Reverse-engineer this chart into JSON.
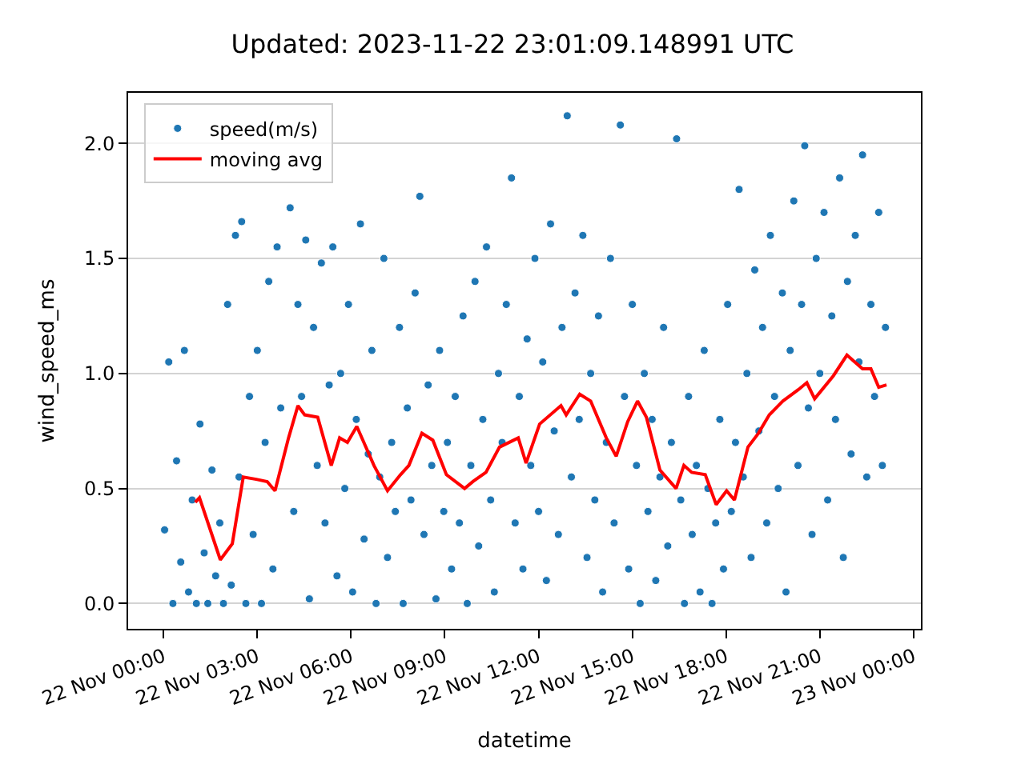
{
  "chart_data": {
    "type": "scatter",
    "title": "Updated: 2023-11-22 23:01:09.148991 UTC",
    "xlabel": "datetime",
    "ylabel": "wind_speed_ms",
    "xlim": [
      "2023-11-21T22:52",
      "2023-11-23T00:14"
    ],
    "xticks": [
      {
        "value": "2023-11-22T00:00",
        "label": "22 Nov 00:00"
      },
      {
        "value": "2023-11-22T03:00",
        "label": "22 Nov 03:00"
      },
      {
        "value": "2023-11-22T06:00",
        "label": "22 Nov 06:00"
      },
      {
        "value": "2023-11-22T09:00",
        "label": "22 Nov 09:00"
      },
      {
        "value": "2023-11-22T12:00",
        "label": "22 Nov 12:00"
      },
      {
        "value": "2023-11-22T15:00",
        "label": "22 Nov 15:00"
      },
      {
        "value": "2023-11-22T18:00",
        "label": "22 Nov 18:00"
      },
      {
        "value": "2023-11-22T21:00",
        "label": "22 Nov 21:00"
      },
      {
        "value": "2023-11-23T00:00",
        "label": "23 Nov 00:00"
      }
    ],
    "ylim": [
      -0.11,
      2.22
    ],
    "yticks": [
      {
        "value": 0,
        "label": "0.0"
      },
      {
        "value": 0.5,
        "label": "0.5"
      },
      {
        "value": 1,
        "label": "1.0"
      },
      {
        "value": 1.5,
        "label": "1.5"
      },
      {
        "value": 2,
        "label": "2.0"
      }
    ],
    "grid": "y",
    "legend": "top left",
    "series": [
      {
        "name": "speed(m/s)",
        "marker": "circle",
        "color": "#1f77b4",
        "x": [
          "2023-11-22T00:02",
          "2023-11-22T00:10",
          "2023-11-22T00:18",
          "2023-11-22T00:25",
          "2023-11-22T00:33",
          "2023-11-22T00:40",
          "2023-11-22T00:48",
          "2023-11-22T00:55",
          "2023-11-22T01:03",
          "2023-11-22T01:10",
          "2023-11-22T01:18",
          "2023-11-22T01:25",
          "2023-11-22T01:33",
          "2023-11-22T01:40",
          "2023-11-22T01:48",
          "2023-11-22T01:55",
          "2023-11-22T02:03",
          "2023-11-22T02:10",
          "2023-11-22T02:18",
          "2023-11-22T02:25",
          "2023-11-22T02:30",
          "2023-11-22T02:38",
          "2023-11-22T02:45",
          "2023-11-22T02:52",
          "2023-11-22T03:00",
          "2023-11-22T03:08",
          "2023-11-22T03:15",
          "2023-11-22T03:22",
          "2023-11-22T03:30",
          "2023-11-22T03:38",
          "2023-11-22T03:45",
          "2023-11-22T04:03",
          "2023-11-22T04:10",
          "2023-11-22T04:18",
          "2023-11-22T04:25",
          "2023-11-22T04:33",
          "2023-11-22T04:40",
          "2023-11-22T04:48",
          "2023-11-22T04:55",
          "2023-11-22T05:03",
          "2023-11-22T05:10",
          "2023-11-22T05:18",
          "2023-11-22T05:25",
          "2023-11-22T05:33",
          "2023-11-22T05:40",
          "2023-11-22T05:48",
          "2023-11-22T05:55",
          "2023-11-22T06:03",
          "2023-11-22T06:10",
          "2023-11-22T06:18",
          "2023-11-22T06:25",
          "2023-11-22T06:33",
          "2023-11-22T06:40",
          "2023-11-22T06:48",
          "2023-11-22T06:55",
          "2023-11-22T07:03",
          "2023-11-22T07:10",
          "2023-11-22T07:18",
          "2023-11-22T07:25",
          "2023-11-22T07:33",
          "2023-11-22T07:40",
          "2023-11-22T07:48",
          "2023-11-22T07:55",
          "2023-11-22T08:03",
          "2023-11-22T08:12",
          "2023-11-22T08:20",
          "2023-11-22T08:28",
          "2023-11-22T08:35",
          "2023-11-22T08:43",
          "2023-11-22T08:50",
          "2023-11-22T08:58",
          "2023-11-22T09:05",
          "2023-11-22T09:13",
          "2023-11-22T09:20",
          "2023-11-22T09:28",
          "2023-11-22T09:35",
          "2023-11-22T09:43",
          "2023-11-22T09:50",
          "2023-11-22T09:58",
          "2023-11-22T10:05",
          "2023-11-22T10:13",
          "2023-11-22T10:20",
          "2023-11-22T10:28",
          "2023-11-22T10:35",
          "2023-11-22T10:43",
          "2023-11-22T10:50",
          "2023-11-22T10:58",
          "2023-11-22T11:08",
          "2023-11-22T11:15",
          "2023-11-22T11:23",
          "2023-11-22T11:30",
          "2023-11-22T11:38",
          "2023-11-22T11:45",
          "2023-11-22T11:53",
          "2023-11-22T12:00",
          "2023-11-22T12:08",
          "2023-11-22T12:15",
          "2023-11-22T12:23",
          "2023-11-22T12:30",
          "2023-11-22T12:38",
          "2023-11-22T12:45",
          "2023-11-22T12:55",
          "2023-11-22T13:03",
          "2023-11-22T13:10",
          "2023-11-22T13:18",
          "2023-11-22T13:25",
          "2023-11-22T13:33",
          "2023-11-22T13:40",
          "2023-11-22T13:48",
          "2023-11-22T13:55",
          "2023-11-22T14:03",
          "2023-11-22T14:10",
          "2023-11-22T14:18",
          "2023-11-22T14:25",
          "2023-11-22T14:37",
          "2023-11-22T14:45",
          "2023-11-22T14:53",
          "2023-11-22T15:00",
          "2023-11-22T15:08",
          "2023-11-22T15:15",
          "2023-11-22T15:23",
          "2023-11-22T15:30",
          "2023-11-22T15:38",
          "2023-11-22T15:45",
          "2023-11-22T15:53",
          "2023-11-22T16:00",
          "2023-11-22T16:08",
          "2023-11-22T16:15",
          "2023-11-22T16:25",
          "2023-11-22T16:33",
          "2023-11-22T16:40",
          "2023-11-22T16:48",
          "2023-11-22T16:55",
          "2023-11-22T17:03",
          "2023-11-22T17:10",
          "2023-11-22T17:18",
          "2023-11-22T17:25",
          "2023-11-22T17:33",
          "2023-11-22T17:40",
          "2023-11-22T17:48",
          "2023-11-22T17:55",
          "2023-11-22T18:03",
          "2023-11-22T18:10",
          "2023-11-22T18:18",
          "2023-11-22T18:25",
          "2023-11-22T18:33",
          "2023-11-22T18:40",
          "2023-11-22T18:48",
          "2023-11-22T18:55",
          "2023-11-22T19:03",
          "2023-11-22T19:10",
          "2023-11-22T19:18",
          "2023-11-22T19:25",
          "2023-11-22T19:33",
          "2023-11-22T19:40",
          "2023-11-22T19:48",
          "2023-11-22T19:55",
          "2023-11-22T20:03",
          "2023-11-22T20:10",
          "2023-11-22T20:18",
          "2023-11-22T20:25",
          "2023-11-22T20:31",
          "2023-11-22T20:38",
          "2023-11-22T20:45",
          "2023-11-22T20:53",
          "2023-11-22T21:00",
          "2023-11-22T21:08",
          "2023-11-22T21:15",
          "2023-11-22T21:23",
          "2023-11-22T21:30",
          "2023-11-22T21:38",
          "2023-11-22T21:45",
          "2023-11-22T21:53",
          "2023-11-22T22:00",
          "2023-11-22T22:08",
          "2023-11-22T22:15",
          "2023-11-22T22:22",
          "2023-11-22T22:30",
          "2023-11-22T22:38",
          "2023-11-22T22:45",
          "2023-11-22T22:53",
          "2023-11-22T23:00",
          "2023-11-22T23:06"
        ],
        "values": [
          0.32,
          1.05,
          0.0,
          0.62,
          0.18,
          1.1,
          0.05,
          0.45,
          0.0,
          0.78,
          0.22,
          0.0,
          0.58,
          0.12,
          0.35,
          0.0,
          1.3,
          0.08,
          1.6,
          0.55,
          1.66,
          0.0,
          0.9,
          0.3,
          1.1,
          0.0,
          0.7,
          1.4,
          0.15,
          1.55,
          0.85,
          1.72,
          0.4,
          1.3,
          0.9,
          1.58,
          0.02,
          1.2,
          0.6,
          1.48,
          0.35,
          0.95,
          1.55,
          0.12,
          1.0,
          0.5,
          1.3,
          0.05,
          0.8,
          1.65,
          0.28,
          0.65,
          1.1,
          0.0,
          0.55,
          1.5,
          0.2,
          0.7,
          0.4,
          1.2,
          0.0,
          0.85,
          0.45,
          1.35,
          1.77,
          0.3,
          0.95,
          0.6,
          0.02,
          1.1,
          0.4,
          0.7,
          0.15,
          0.9,
          0.35,
          1.25,
          0.0,
          0.6,
          1.4,
          0.25,
          0.8,
          1.55,
          0.45,
          0.05,
          1.0,
          0.7,
          1.3,
          1.85,
          0.35,
          0.9,
          0.15,
          1.15,
          0.6,
          1.5,
          0.4,
          1.05,
          0.1,
          1.65,
          0.75,
          0.3,
          1.2,
          2.12,
          0.55,
          1.35,
          0.8,
          1.6,
          0.2,
          1.0,
          0.45,
          1.25,
          0.05,
          0.7,
          1.5,
          0.35,
          2.08,
          0.9,
          0.15,
          1.3,
          0.6,
          0.0,
          1.0,
          0.4,
          0.8,
          0.1,
          0.55,
          1.2,
          0.25,
          0.7,
          2.02,
          0.45,
          0.0,
          0.9,
          0.3,
          0.6,
          0.05,
          1.1,
          0.5,
          0.0,
          0.35,
          0.8,
          0.15,
          1.3,
          0.4,
          0.7,
          1.8,
          0.55,
          1.0,
          0.2,
          1.45,
          0.75,
          1.2,
          0.35,
          1.6,
          0.9,
          0.5,
          1.35,
          0.05,
          1.1,
          1.75,
          0.6,
          1.3,
          1.99,
          0.85,
          0.3,
          1.5,
          1.0,
          1.7,
          0.45,
          1.25,
          0.8,
          1.85,
          0.2,
          1.4,
          0.65,
          1.6,
          1.05,
          1.95,
          0.55,
          1.3,
          0.9,
          1.7,
          0.6,
          1.2
        ]
      },
      {
        "name": "moving avg",
        "type": "line",
        "marker": "none",
        "line_style": "solid",
        "color": "#ff0000",
        "x": [
          "2023-11-22T01:01",
          "2023-11-22T01:09",
          "2023-11-22T01:49",
          "2023-11-22T02:12",
          "2023-11-22T02:33",
          "2023-11-22T02:58",
          "2023-11-22T03:19",
          "2023-11-22T03:34",
          "2023-11-22T04:00",
          "2023-11-22T04:18",
          "2023-11-22T04:31",
          "2023-11-22T04:56",
          "2023-11-22T05:22",
          "2023-11-22T05:38",
          "2023-11-22T05:53",
          "2023-11-22T06:11",
          "2023-11-22T06:44",
          "2023-11-22T07:10",
          "2023-11-22T07:35",
          "2023-11-22T07:51",
          "2023-11-22T08:16",
          "2023-11-22T08:37",
          "2023-11-22T09:03",
          "2023-11-22T09:38",
          "2023-11-22T09:54",
          "2023-11-22T10:19",
          "2023-11-22T10:45",
          "2023-11-22T11:21",
          "2023-11-22T11:36",
          "2023-11-22T12:02",
          "2023-11-22T12:43",
          "2023-11-22T12:53",
          "2023-11-22T13:19",
          "2023-11-22T13:40",
          "2023-11-22T14:10",
          "2023-11-22T14:29",
          "2023-11-22T14:51",
          "2023-11-22T15:10",
          "2023-11-22T15:27",
          "2023-11-22T15:53",
          "2023-11-22T16:24",
          "2023-11-22T16:39",
          "2023-11-22T16:54",
          "2023-11-22T17:20",
          "2023-11-22T17:41",
          "2023-11-22T18:01",
          "2023-11-22T18:16",
          "2023-11-22T18:42",
          "2023-11-22T19:02",
          "2023-11-22T19:23",
          "2023-11-22T19:49",
          "2023-11-22T20:19",
          "2023-11-22T20:35",
          "2023-11-22T20:50",
          "2023-11-22T21:26",
          "2023-11-22T21:52",
          "2023-11-22T22:07",
          "2023-11-22T22:22",
          "2023-11-22T22:38",
          "2023-11-22T22:53",
          "2023-11-22T23:08"
        ],
        "values": [
          0.44,
          0.46,
          0.19,
          0.26,
          0.55,
          0.54,
          0.53,
          0.49,
          0.72,
          0.86,
          0.82,
          0.81,
          0.6,
          0.72,
          0.7,
          0.77,
          0.6,
          0.49,
          0.56,
          0.6,
          0.74,
          0.71,
          0.56,
          0.5,
          0.53,
          0.57,
          0.68,
          0.72,
          0.61,
          0.78,
          0.86,
          0.82,
          0.91,
          0.88,
          0.72,
          0.64,
          0.79,
          0.88,
          0.81,
          0.58,
          0.5,
          0.6,
          0.57,
          0.56,
          0.43,
          0.49,
          0.45,
          0.68,
          0.74,
          0.82,
          0.88,
          0.93,
          0.96,
          0.89,
          0.99,
          1.08,
          1.05,
          1.02,
          1.02,
          0.94,
          0.95
        ]
      }
    ]
  }
}
